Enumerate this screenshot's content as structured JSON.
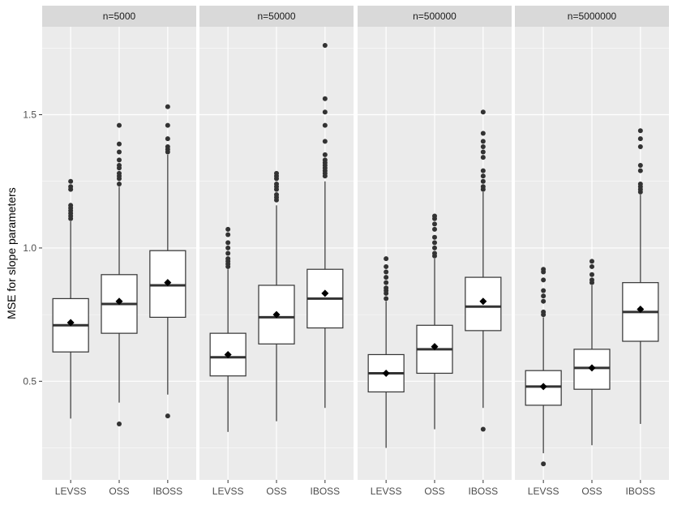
{
  "chart_data": {
    "type": "boxplot",
    "ylabel": "MSE for slope parameters",
    "xlabel": "",
    "ylim": [
      0.13,
      1.83
    ],
    "y_ticks": [
      0.5,
      1.0,
      1.5
    ],
    "y_tick_labels": [
      "0.5",
      "1.0",
      "1.5"
    ],
    "categories": [
      "LEVSS",
      "OSS",
      "IBOSS"
    ],
    "legend": "none",
    "grid": true,
    "colors": {
      "panel_bg": "#ebebeb",
      "strip_bg": "#d9d9d9",
      "grid_major": "#ffffff",
      "box_fill": "#ffffff",
      "stroke": "#333333",
      "point": "#333333",
      "mean": "#000000"
    },
    "panels": [
      {
        "label": "n=5000",
        "boxes": [
          {
            "category": "LEVSS",
            "whisker_low": 0.36,
            "q1": 0.61,
            "median": 0.71,
            "q3": 0.81,
            "whisker_high": 1.1,
            "mean": 0.72,
            "outliers": [
              1.11,
              1.12,
              1.13,
              1.14,
              1.15,
              1.16,
              1.22,
              1.23,
              1.25
            ]
          },
          {
            "category": "OSS",
            "whisker_low": 0.42,
            "q1": 0.68,
            "median": 0.79,
            "q3": 0.9,
            "whisker_high": 1.23,
            "mean": 0.8,
            "outliers": [
              0.34,
              1.24,
              1.26,
              1.27,
              1.28,
              1.3,
              1.31,
              1.33,
              1.36,
              1.39,
              1.46
            ]
          },
          {
            "category": "IBOSS",
            "whisker_low": 0.45,
            "q1": 0.74,
            "median": 0.86,
            "q3": 0.99,
            "whisker_high": 1.35,
            "mean": 0.87,
            "outliers": [
              0.37,
              1.36,
              1.37,
              1.38,
              1.41,
              1.46,
              1.53
            ]
          }
        ]
      },
      {
        "label": "n=50000",
        "boxes": [
          {
            "category": "LEVSS",
            "whisker_low": 0.31,
            "q1": 0.52,
            "median": 0.59,
            "q3": 0.68,
            "whisker_high": 0.92,
            "mean": 0.6,
            "outliers": [
              0.93,
              0.94,
              0.95,
              0.96,
              0.98,
              1.0,
              1.02,
              1.05,
              1.07
            ]
          },
          {
            "category": "OSS",
            "whisker_low": 0.35,
            "q1": 0.64,
            "median": 0.74,
            "q3": 0.86,
            "whisker_high": 1.16,
            "mean": 0.75,
            "outliers": [
              1.18,
              1.19,
              1.2,
              1.22,
              1.23,
              1.24,
              1.26,
              1.27,
              1.28
            ]
          },
          {
            "category": "IBOSS",
            "whisker_low": 0.4,
            "q1": 0.7,
            "median": 0.81,
            "q3": 0.92,
            "whisker_high": 1.25,
            "mean": 0.83,
            "outliers": [
              1.27,
              1.28,
              1.29,
              1.3,
              1.31,
              1.32,
              1.33,
              1.35,
              1.4,
              1.46,
              1.51,
              1.56,
              1.76
            ]
          }
        ]
      },
      {
        "label": "n=500000",
        "boxes": [
          {
            "category": "LEVSS",
            "whisker_low": 0.25,
            "q1": 0.46,
            "median": 0.53,
            "q3": 0.6,
            "whisker_high": 0.8,
            "mean": 0.53,
            "outliers": [
              0.81,
              0.83,
              0.84,
              0.85,
              0.87,
              0.89,
              0.91,
              0.93,
              0.96
            ]
          },
          {
            "category": "OSS",
            "whisker_low": 0.32,
            "q1": 0.53,
            "median": 0.62,
            "q3": 0.71,
            "whisker_high": 0.96,
            "mean": 0.63,
            "outliers": [
              0.97,
              0.98,
              1.0,
              1.02,
              1.04,
              1.07,
              1.09,
              1.11,
              1.12
            ]
          },
          {
            "category": "IBOSS",
            "whisker_low": 0.4,
            "q1": 0.69,
            "median": 0.78,
            "q3": 0.89,
            "whisker_high": 1.21,
            "mean": 0.8,
            "outliers": [
              0.32,
              1.22,
              1.23,
              1.25,
              1.27,
              1.29,
              1.34,
              1.36,
              1.38,
              1.4,
              1.43,
              1.51
            ]
          }
        ]
      },
      {
        "label": "n=5000000",
        "boxes": [
          {
            "category": "LEVSS",
            "whisker_low": 0.23,
            "q1": 0.41,
            "median": 0.48,
            "q3": 0.54,
            "whisker_high": 0.74,
            "mean": 0.48,
            "outliers": [
              0.19,
              0.75,
              0.76,
              0.8,
              0.82,
              0.84,
              0.88,
              0.91,
              0.92
            ]
          },
          {
            "category": "OSS",
            "whisker_low": 0.26,
            "q1": 0.47,
            "median": 0.55,
            "q3": 0.62,
            "whisker_high": 0.86,
            "mean": 0.55,
            "outliers": [
              0.87,
              0.88,
              0.9,
              0.93,
              0.95
            ]
          },
          {
            "category": "IBOSS",
            "whisker_low": 0.34,
            "q1": 0.65,
            "median": 0.76,
            "q3": 0.87,
            "whisker_high": 1.2,
            "mean": 0.77,
            "outliers": [
              1.21,
              1.22,
              1.23,
              1.24,
              1.29,
              1.31,
              1.38,
              1.41,
              1.44
            ]
          }
        ]
      }
    ]
  }
}
